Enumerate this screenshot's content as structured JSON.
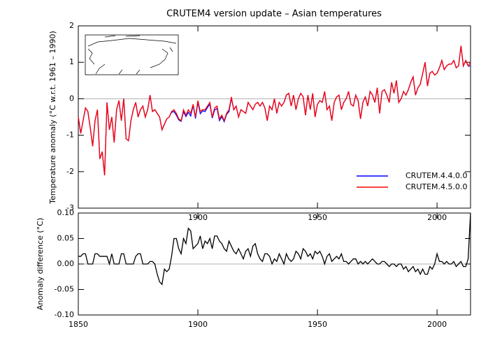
{
  "chart_data": [
    {
      "type": "line",
      "title": "CRUTEM4 version update – Asian temperatures",
      "ylabel": "Temperature anomaly (°C w.r.t. 1961 – 1990)",
      "x": [
        1850,
        1851,
        1852,
        1853,
        1854,
        1855,
        1856,
        1857,
        1858,
        1859,
        1860,
        1861,
        1862,
        1863,
        1864,
        1865,
        1866,
        1867,
        1868,
        1869,
        1870,
        1871,
        1872,
        1873,
        1874,
        1875,
        1876,
        1877,
        1878,
        1879,
        1880,
        1881,
        1882,
        1883,
        1884,
        1885,
        1886,
        1887,
        1888,
        1889,
        1890,
        1891,
        1892,
        1893,
        1894,
        1895,
        1896,
        1897,
        1898,
        1899,
        1900,
        1901,
        1902,
        1903,
        1904,
        1905,
        1906,
        1907,
        1908,
        1909,
        1910,
        1911,
        1912,
        1913,
        1914,
        1915,
        1916,
        1917,
        1918,
        1919,
        1920,
        1921,
        1922,
        1923,
        1924,
        1925,
        1926,
        1927,
        1928,
        1929,
        1930,
        1931,
        1932,
        1933,
        1934,
        1935,
        1936,
        1937,
        1938,
        1939,
        1940,
        1941,
        1942,
        1943,
        1944,
        1945,
        1946,
        1947,
        1948,
        1949,
        1950,
        1951,
        1952,
        1953,
        1954,
        1955,
        1956,
        1957,
        1958,
        1959,
        1960,
        1961,
        1962,
        1963,
        1964,
        1965,
        1966,
        1967,
        1968,
        1969,
        1970,
        1971,
        1972,
        1973,
        1974,
        1975,
        1976,
        1977,
        1978,
        1979,
        1980,
        1981,
        1982,
        1983,
        1984,
        1985,
        1986,
        1987,
        1988,
        1989,
        1990,
        1991,
        1992,
        1993,
        1994,
        1995,
        1996,
        1997,
        1998,
        1999,
        2000,
        2001,
        2002,
        2003,
        2004,
        2005,
        2006,
        2007,
        2008,
        2009,
        2010,
        2011,
        2012,
        2013,
        2014
      ],
      "series": [
        {
          "name": "CRUTEM.4.4.0.0",
          "color": "#0000ff",
          "values": [
            -0.5,
            -0.95,
            -0.6,
            -0.25,
            -0.35,
            -0.8,
            -1.3,
            -0.6,
            -0.3,
            -1.65,
            -1.45,
            -2.1,
            -0.1,
            -0.85,
            -0.5,
            -1.2,
            -0.3,
            -0.05,
            -0.6,
            0.0,
            -1.1,
            -1.15,
            -0.6,
            -0.3,
            -0.1,
            -0.5,
            -0.3,
            -0.2,
            -0.5,
            -0.3,
            0.1,
            -0.35,
            -0.3,
            -0.4,
            -0.5,
            -0.85,
            -0.7,
            -0.55,
            -0.5,
            -0.37,
            -0.35,
            -0.45,
            -0.58,
            -0.62,
            -0.35,
            -0.49,
            -0.37,
            -0.47,
            -0.18,
            -0.54,
            -0.09,
            -0.41,
            -0.33,
            -0.35,
            -0.24,
            -0.15,
            -0.53,
            -0.31,
            -0.26,
            -0.6,
            -0.49,
            -0.63,
            -0.43,
            -0.35,
            0.02,
            -0.3,
            -0.2,
            -0.5,
            -0.3,
            -0.35,
            -0.4,
            -0.1,
            -0.2,
            -0.3,
            -0.15,
            -0.1,
            -0.2,
            -0.1,
            -0.25,
            -0.6,
            -0.2,
            -0.3,
            0.0,
            -0.4,
            -0.1,
            -0.2,
            -0.1,
            0.1,
            0.15,
            -0.2,
            0.1,
            -0.3,
            0.0,
            0.15,
            0.05,
            -0.45,
            0.1,
            -0.3,
            0.15,
            -0.5,
            -0.15,
            -0.05,
            -0.1,
            0.2,
            -0.3,
            -0.2,
            -0.6,
            -0.1,
            0.05,
            0.1,
            -0.3,
            -0.1,
            0.0,
            0.2,
            -0.15,
            -0.2,
            0.1,
            -0.05,
            -0.55,
            -0.1,
            0.05,
            -0.2,
            0.2,
            0.1,
            -0.1,
            0.3,
            -0.4,
            0.2,
            0.25,
            0.1,
            -0.1,
            0.45,
            0.15,
            0.5,
            -0.1,
            0.0,
            0.2,
            0.1,
            0.25,
            0.45,
            0.6,
            0.1,
            0.3,
            0.4,
            0.7,
            1.0,
            0.35,
            0.7,
            0.75,
            0.65,
            0.7,
            0.85,
            1.05,
            0.8,
            0.9,
            0.95,
            0.95,
            1.05,
            0.85,
            0.9,
            1.45,
            0.9,
            1.05,
            0.9,
            0.9
          ]
        },
        {
          "name": "CRUTEM.4.5.0.0",
          "color": "#ff0000",
          "values": [
            -0.5,
            -0.95,
            -0.6,
            -0.25,
            -0.35,
            -0.8,
            -1.3,
            -0.6,
            -0.3,
            -1.65,
            -1.45,
            -2.1,
            -0.1,
            -0.85,
            -0.5,
            -1.2,
            -0.3,
            -0.05,
            -0.6,
            0.0,
            -1.1,
            -1.15,
            -0.6,
            -0.3,
            -0.1,
            -0.5,
            -0.3,
            -0.2,
            -0.5,
            -0.3,
            0.1,
            -0.35,
            -0.3,
            -0.4,
            -0.5,
            -0.85,
            -0.7,
            -0.55,
            -0.5,
            -0.35,
            -0.3,
            -0.4,
            -0.55,
            -0.6,
            -0.3,
            -0.45,
            -0.3,
            -0.4,
            -0.15,
            -0.5,
            -0.05,
            -0.35,
            -0.3,
            -0.3,
            -0.2,
            -0.1,
            -0.5,
            -0.25,
            -0.2,
            -0.55,
            -0.45,
            -0.6,
            -0.4,
            -0.3,
            0.05,
            -0.3,
            -0.2,
            -0.5,
            -0.3,
            -0.35,
            -0.4,
            -0.1,
            -0.2,
            -0.3,
            -0.15,
            -0.1,
            -0.2,
            -0.1,
            -0.25,
            -0.6,
            -0.2,
            -0.3,
            0.0,
            -0.4,
            -0.1,
            -0.2,
            -0.1,
            0.1,
            0.15,
            -0.2,
            0.1,
            -0.3,
            0.0,
            0.15,
            0.05,
            -0.45,
            0.1,
            -0.3,
            0.15,
            -0.5,
            -0.15,
            -0.05,
            -0.1,
            0.2,
            -0.3,
            -0.2,
            -0.6,
            -0.1,
            0.05,
            0.1,
            -0.3,
            -0.1,
            0.0,
            0.2,
            -0.15,
            -0.2,
            0.1,
            -0.05,
            -0.55,
            -0.1,
            0.05,
            -0.2,
            0.2,
            0.1,
            -0.1,
            0.3,
            -0.4,
            0.2,
            0.25,
            0.1,
            -0.1,
            0.45,
            0.15,
            0.5,
            -0.1,
            0.0,
            0.2,
            0.1,
            0.25,
            0.45,
            0.6,
            0.1,
            0.3,
            0.4,
            0.7,
            1.0,
            0.35,
            0.7,
            0.75,
            0.65,
            0.7,
            0.85,
            1.05,
            0.8,
            0.9,
            0.95,
            0.95,
            1.05,
            0.85,
            0.9,
            1.45,
            0.9,
            1.05,
            0.9,
            1.0
          ]
        }
      ],
      "xlim": [
        1850,
        2014
      ],
      "ylim": [
        -3,
        2
      ],
      "xticks": [
        1900,
        1950,
        2000
      ],
      "yticks": [
        -3,
        -2,
        -1,
        0,
        1,
        2
      ],
      "legend": "lower right"
    },
    {
      "type": "line",
      "ylabel": "Anomaly difference (°C)",
      "x": [
        1850,
        1851,
        1852,
        1853,
        1854,
        1855,
        1856,
        1857,
        1858,
        1859,
        1860,
        1861,
        1862,
        1863,
        1864,
        1865,
        1866,
        1867,
        1868,
        1869,
        1870,
        1871,
        1872,
        1873,
        1874,
        1875,
        1876,
        1877,
        1878,
        1879,
        1880,
        1881,
        1882,
        1883,
        1884,
        1885,
        1886,
        1887,
        1888,
        1889,
        1890,
        1891,
        1892,
        1893,
        1894,
        1895,
        1896,
        1897,
        1898,
        1899,
        1900,
        1901,
        1902,
        1903,
        1904,
        1905,
        1906,
        1907,
        1908,
        1909,
        1910,
        1911,
        1912,
        1913,
        1914,
        1915,
        1916,
        1917,
        1918,
        1919,
        1920,
        1921,
        1922,
        1923,
        1924,
        1925,
        1926,
        1927,
        1928,
        1929,
        1930,
        1931,
        1932,
        1933,
        1934,
        1935,
        1936,
        1937,
        1938,
        1939,
        1940,
        1941,
        1942,
        1943,
        1944,
        1945,
        1946,
        1947,
        1948,
        1949,
        1950,
        1951,
        1952,
        1953,
        1954,
        1955,
        1956,
        1957,
        1958,
        1959,
        1960,
        1961,
        1962,
        1963,
        1964,
        1965,
        1966,
        1967,
        1968,
        1969,
        1970,
        1971,
        1972,
        1973,
        1974,
        1975,
        1976,
        1977,
        1978,
        1979,
        1980,
        1981,
        1982,
        1983,
        1984,
        1985,
        1986,
        1987,
        1988,
        1989,
        1990,
        1991,
        1992,
        1993,
        1994,
        1995,
        1996,
        1997,
        1998,
        1999,
        2000,
        2001,
        2002,
        2003,
        2004,
        2005,
        2006,
        2007,
        2008,
        2009,
        2010,
        2011,
        2012,
        2013,
        2014
      ],
      "series": [
        {
          "color": "#000000",
          "values": [
            0.015,
            0.015,
            0.02,
            0.02,
            0,
            0,
            0,
            0.02,
            0.02,
            0.015,
            0.015,
            0.015,
            0.015,
            0,
            0.02,
            0,
            0,
            0,
            0.02,
            0.02,
            0,
            0,
            0,
            0,
            0.015,
            0.02,
            0.02,
            0,
            0,
            0,
            0.005,
            0.005,
            0.0,
            -0.02,
            -0.035,
            -0.04,
            -0.01,
            -0.015,
            -0.01,
            0.015,
            0.05,
            0.05,
            0.03,
            0.02,
            0.05,
            0.04,
            0.07,
            0.065,
            0.03,
            0.035,
            0.04,
            0.055,
            0.03,
            0.045,
            0.04,
            0.05,
            0.03,
            0.055,
            0.055,
            0.045,
            0.04,
            0.03,
            0.025,
            0.045,
            0.035,
            0.025,
            0.02,
            0.03,
            0.02,
            0.01,
            0.025,
            0.03,
            0.015,
            0.035,
            0.04,
            0.02,
            0.01,
            0.005,
            0.02,
            0.02,
            0.015,
            0.0,
            0.01,
            0.005,
            0.02,
            0.01,
            0.0,
            0.02,
            0.01,
            0.005,
            0.01,
            0.025,
            0.02,
            0.01,
            0.03,
            0.025,
            0.015,
            0.02,
            0.01,
            0.025,
            0.02,
            0.025,
            0.015,
            0.0,
            0.015,
            0.02,
            0.005,
            0.01,
            0.015,
            0.01,
            0.02,
            0.005,
            0.005,
            0.0,
            0.005,
            0.01,
            0.01,
            0.0,
            0.005,
            0.0,
            0.005,
            0.0,
            0.005,
            0.01,
            0.005,
            0.0,
            0.0,
            0.005,
            0.005,
            0.0,
            -0.005,
            0.0,
            0.0,
            -0.005,
            0.0,
            0.0,
            -0.01,
            -0.005,
            -0.015,
            -0.01,
            -0.005,
            -0.015,
            -0.01,
            -0.02,
            -0.01,
            -0.02,
            -0.02,
            -0.005,
            -0.01,
            0.0,
            0.02,
            0.005,
            0.005,
            0.0,
            0.005,
            0.0,
            0.0,
            0.005,
            -0.005,
            0.0,
            0.005,
            -0.005,
            -0.005,
            0.01,
            0.1
          ]
        }
      ],
      "xlim": [
        1850,
        2014
      ],
      "ylim": [
        -0.1,
        0.1
      ],
      "xticks": [
        1850,
        1900,
        1950,
        2000
      ],
      "yticks": [
        {
          "value": -0.1,
          "label": "-0.10"
        },
        {
          "value": -0.05,
          "label": "-0.05"
        },
        {
          "value": 0,
          "label": "0.00"
        },
        {
          "value": 0.05,
          "label": "0.05"
        },
        {
          "value": 0.1,
          "label": "0.10"
        }
      ]
    }
  ]
}
